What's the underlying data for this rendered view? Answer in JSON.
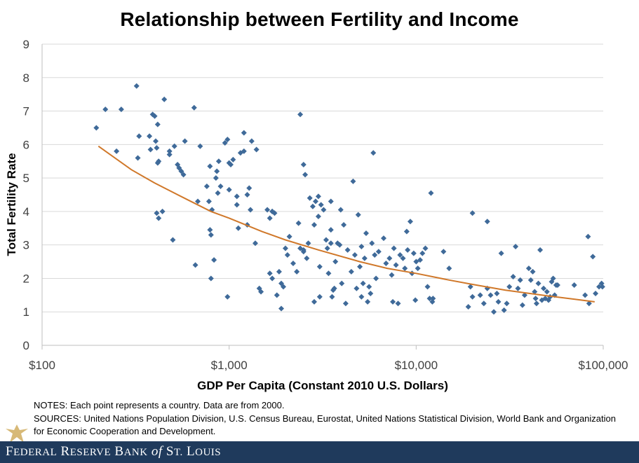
{
  "chart_data": {
    "type": "scatter",
    "title": "Relationship between Fertility and Income",
    "xlabel": "GDP Per Capita  (Constant  2010 U.S. Dollars)",
    "ylabel": "Total Fertility Rate",
    "xscale": "log",
    "xlim": [
      100,
      100000
    ],
    "ylim": [
      0,
      9
    ],
    "x_ticks": [
      100,
      1000,
      10000,
      100000
    ],
    "x_tick_labels": [
      "$100",
      "$1,000",
      "$10,000",
      "$100,000"
    ],
    "y_ticks": [
      0,
      1,
      2,
      3,
      4,
      5,
      6,
      7,
      8,
      9
    ],
    "y_tick_labels": [
      "0",
      "1",
      "2",
      "3",
      "4",
      "5",
      "6",
      "7",
      "8",
      "9"
    ],
    "grid": "horizontal",
    "legend": "none",
    "series": [
      {
        "kind": "points",
        "color": "#3f6a99",
        "marker": "diamond",
        "points": [
          [
            195,
            6.5
          ],
          [
            218,
            7.05
          ],
          [
            250,
            5.8
          ],
          [
            265,
            7.05
          ],
          [
            320,
            7.75
          ],
          [
            325,
            5.6
          ],
          [
            330,
            6.25
          ],
          [
            375,
            6.25
          ],
          [
            380,
            5.85
          ],
          [
            390,
            6.9
          ],
          [
            400,
            6.85
          ],
          [
            405,
            6.1
          ],
          [
            410,
            5.9
          ],
          [
            415,
            6.6
          ],
          [
            415,
            5.45
          ],
          [
            420,
            5.5
          ],
          [
            410,
            3.95
          ],
          [
            420,
            3.8
          ],
          [
            440,
            4.0
          ],
          [
            450,
            7.35
          ],
          [
            480,
            5.8
          ],
          [
            480,
            5.7
          ],
          [
            500,
            3.15
          ],
          [
            510,
            5.95
          ],
          [
            530,
            5.4
          ],
          [
            540,
            5.3
          ],
          [
            555,
            5.2
          ],
          [
            570,
            5.1
          ],
          [
            580,
            6.1
          ],
          [
            650,
            7.1
          ],
          [
            660,
            2.4
          ],
          [
            680,
            4.3
          ],
          [
            700,
            5.95
          ],
          [
            760,
            4.75
          ],
          [
            780,
            4.3
          ],
          [
            790,
            5.35
          ],
          [
            790,
            3.45
          ],
          [
            800,
            2.0
          ],
          [
            800,
            3.3
          ],
          [
            810,
            4.05
          ],
          [
            830,
            2.55
          ],
          [
            850,
            5.0
          ],
          [
            860,
            5.2
          ],
          [
            870,
            4.55
          ],
          [
            880,
            5.5
          ],
          [
            900,
            4.75
          ],
          [
            950,
            6.05
          ],
          [
            980,
            6.15
          ],
          [
            980,
            1.45
          ],
          [
            1000,
            5.45
          ],
          [
            1000,
            4.65
          ],
          [
            1020,
            5.4
          ],
          [
            1050,
            5.55
          ],
          [
            1100,
            4.45
          ],
          [
            1100,
            4.2
          ],
          [
            1120,
            3.5
          ],
          [
            1150,
            5.75
          ],
          [
            1200,
            6.35
          ],
          [
            1200,
            5.8
          ],
          [
            1250,
            4.5
          ],
          [
            1250,
            3.6
          ],
          [
            1280,
            4.7
          ],
          [
            1300,
            4.05
          ],
          [
            1320,
            6.1
          ],
          [
            1380,
            3.05
          ],
          [
            1400,
            5.85
          ],
          [
            1450,
            1.7
          ],
          [
            1480,
            1.6
          ],
          [
            1600,
            4.05
          ],
          [
            1650,
            2.15
          ],
          [
            1650,
            3.8
          ],
          [
            1700,
            4.0
          ],
          [
            1700,
            2.0
          ],
          [
            1700,
            4.0
          ],
          [
            1750,
            3.95
          ],
          [
            1800,
            1.5
          ],
          [
            1850,
            2.2
          ],
          [
            1900,
            1.85
          ],
          [
            1900,
            1.1
          ],
          [
            1950,
            1.75
          ],
          [
            2000,
            2.9
          ],
          [
            2050,
            2.7
          ],
          [
            2100,
            3.25
          ],
          [
            2200,
            2.45
          ],
          [
            2300,
            2.2
          ],
          [
            2350,
            3.65
          ],
          [
            2400,
            2.9
          ],
          [
            2400,
            6.9
          ],
          [
            2500,
            2.85
          ],
          [
            2500,
            2.8
          ],
          [
            2500,
            5.4
          ],
          [
            2550,
            5.1
          ],
          [
            2600,
            2.6
          ],
          [
            2650,
            3.05
          ],
          [
            2700,
            4.4
          ],
          [
            2800,
            4.15
          ],
          [
            2850,
            3.6
          ],
          [
            2850,
            1.3
          ],
          [
            2900,
            4.3
          ],
          [
            3000,
            4.45
          ],
          [
            3000,
            3.85
          ],
          [
            3050,
            2.35
          ],
          [
            3050,
            1.45
          ],
          [
            3100,
            4.2
          ],
          [
            3200,
            4.05
          ],
          [
            3300,
            3.15
          ],
          [
            3350,
            2.9
          ],
          [
            3400,
            2.15
          ],
          [
            3500,
            3.45
          ],
          [
            3500,
            4.3
          ],
          [
            3500,
            3.05
          ],
          [
            3550,
            1.45
          ],
          [
            3600,
            1.65
          ],
          [
            3650,
            1.7
          ],
          [
            3700,
            2.5
          ],
          [
            3800,
            3.05
          ],
          [
            3900,
            3.0
          ],
          [
            3950,
            4.05
          ],
          [
            4000,
            1.85
          ],
          [
            4100,
            3.6
          ],
          [
            4200,
            1.25
          ],
          [
            4300,
            2.85
          ],
          [
            4500,
            2.2
          ],
          [
            4600,
            4.9
          ],
          [
            4700,
            2.7
          ],
          [
            4800,
            1.7
          ],
          [
            4900,
            3.9
          ],
          [
            5000,
            2.35
          ],
          [
            5100,
            1.45
          ],
          [
            5100,
            2.95
          ],
          [
            5200,
            1.85
          ],
          [
            5300,
            2.6
          ],
          [
            5400,
            3.35
          ],
          [
            5500,
            1.3
          ],
          [
            5600,
            1.75
          ],
          [
            5700,
            1.55
          ],
          [
            5800,
            3.05
          ],
          [
            5900,
            5.75
          ],
          [
            6000,
            2.7
          ],
          [
            6100,
            2.0
          ],
          [
            6300,
            2.8
          ],
          [
            6700,
            3.2
          ],
          [
            6900,
            2.45
          ],
          [
            7200,
            2.6
          ],
          [
            7400,
            2.1
          ],
          [
            7500,
            1.3
          ],
          [
            7600,
            2.9
          ],
          [
            7800,
            2.4
          ],
          [
            8000,
            1.25
          ],
          [
            8200,
            2.7
          ],
          [
            8500,
            2.6
          ],
          [
            8700,
            2.3
          ],
          [
            8900,
            3.4
          ],
          [
            9000,
            2.85
          ],
          [
            9300,
            3.7
          ],
          [
            9500,
            2.15
          ],
          [
            9700,
            2.75
          ],
          [
            9900,
            1.35
          ],
          [
            10000,
            2.5
          ],
          [
            10200,
            2.3
          ],
          [
            10500,
            2.55
          ],
          [
            10800,
            2.75
          ],
          [
            11200,
            2.9
          ],
          [
            11500,
            1.75
          ],
          [
            11800,
            1.4
          ],
          [
            12000,
            4.55
          ],
          [
            12200,
            1.3
          ],
          [
            12300,
            1.4
          ],
          [
            14000,
            2.8
          ],
          [
            15000,
            2.3
          ],
          [
            19000,
            1.15
          ],
          [
            19500,
            1.75
          ],
          [
            20000,
            3.95
          ],
          [
            20000,
            1.45
          ],
          [
            22000,
            1.5
          ],
          [
            23000,
            1.25
          ],
          [
            24000,
            3.7
          ],
          [
            24000,
            1.7
          ],
          [
            25000,
            1.5
          ],
          [
            26000,
            1.0
          ],
          [
            27000,
            1.55
          ],
          [
            27500,
            1.3
          ],
          [
            28500,
            2.75
          ],
          [
            29500,
            1.05
          ],
          [
            30500,
            1.25
          ],
          [
            31500,
            1.75
          ],
          [
            33000,
            2.05
          ],
          [
            34000,
            2.95
          ],
          [
            35000,
            1.7
          ],
          [
            36000,
            1.95
          ],
          [
            37000,
            1.2
          ],
          [
            38000,
            1.5
          ],
          [
            40000,
            2.3
          ],
          [
            41000,
            1.95
          ],
          [
            42000,
            2.2
          ],
          [
            43000,
            1.6
          ],
          [
            43500,
            1.4
          ],
          [
            44000,
            1.25
          ],
          [
            45000,
            1.85
          ],
          [
            46000,
            2.85
          ],
          [
            47000,
            1.35
          ],
          [
            48000,
            1.7
          ],
          [
            49000,
            1.4
          ],
          [
            50000,
            1.6
          ],
          [
            51000,
            1.35
          ],
          [
            52000,
            1.45
          ],
          [
            53000,
            1.9
          ],
          [
            54000,
            2.0
          ],
          [
            55000,
            1.5
          ],
          [
            56000,
            1.8
          ],
          [
            57000,
            1.8
          ],
          [
            70000,
            1.8
          ],
          [
            80000,
            1.5
          ],
          [
            83000,
            3.25
          ],
          [
            84000,
            1.25
          ],
          [
            88000,
            2.65
          ],
          [
            91000,
            1.55
          ],
          [
            95000,
            1.75
          ],
          [
            98000,
            1.85
          ],
          [
            99000,
            1.75
          ]
        ]
      },
      {
        "kind": "trend",
        "color": "#d0782a",
        "points": [
          [
            200,
            5.95
          ],
          [
            300,
            5.25
          ],
          [
            400,
            4.85
          ],
          [
            600,
            4.35
          ],
          [
            800,
            4.0
          ],
          [
            1000,
            3.8
          ],
          [
            1500,
            3.4
          ],
          [
            2000,
            3.15
          ],
          [
            3000,
            2.85
          ],
          [
            5000,
            2.5
          ],
          [
            7000,
            2.3
          ],
          [
            10000,
            2.15
          ],
          [
            15000,
            1.95
          ],
          [
            20000,
            1.82
          ],
          [
            30000,
            1.65
          ],
          [
            50000,
            1.48
          ],
          [
            70000,
            1.38
          ],
          [
            90000,
            1.3
          ]
        ]
      }
    ]
  },
  "notes": "NOTES: Each point represents a country. Data are from 2000.",
  "sources": "SOURCES: United Nations Population Division, U.S. Census Bureau, Eurostat, United Nations Statistical Division, World Bank and Organization for Economic Cooperation and Development.",
  "footer": {
    "logo_word1_big": "F",
    "logo_word1_rest": "EDERAL",
    "logo_word2_big": "R",
    "logo_word2_rest": "ESERVE",
    "logo_word3_big": "B",
    "logo_word3_rest": "ANK",
    "logo_of": "of",
    "logo_word4_big": "S",
    "logo_word4_rest": "T.",
    "logo_word5_big": "L",
    "logo_word5_rest": "OUIS"
  },
  "colors": {
    "gridline": "#d9d9d9",
    "axis": "#bfbfbf",
    "footer_bg": "#1f3a5c"
  }
}
